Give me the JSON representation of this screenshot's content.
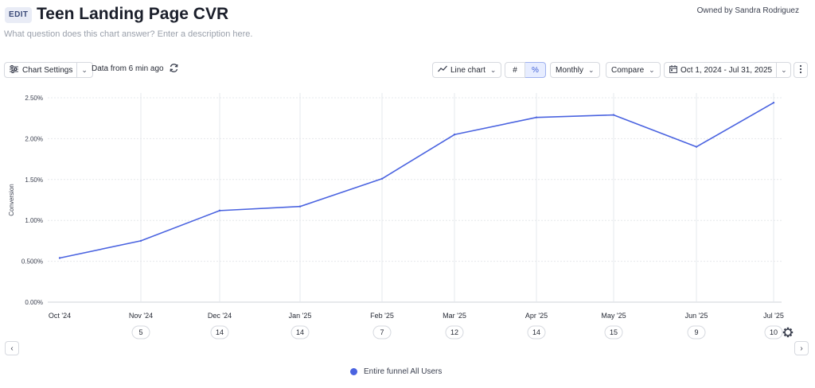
{
  "header": {
    "edit_label": "EDIT",
    "title": "Teen Landing Page CVR",
    "description_placeholder": "What question does this chart answer? Enter a description here.",
    "owner": "Owned by Sandra Rodriguez"
  },
  "toolbar": {
    "chart_settings_label": "Chart Settings",
    "data_freshness": "Data from 6 min ago",
    "chart_type_label": "Line chart",
    "count_toggle_label": "#",
    "percent_toggle_label": "%",
    "interval_label": "Monthly",
    "compare_label": "Compare",
    "date_range_label": "Oct 1, 2024 - Jul 31, 2025"
  },
  "icons": {
    "settings": "sliders-icon",
    "refresh": "refresh-icon",
    "line_chart": "line-chart-icon",
    "calendar": "calendar-icon",
    "more": "more-vertical-icon",
    "gear": "gear-icon",
    "prev": "chevron-left-icon",
    "next": "chevron-right-icon"
  },
  "colors": {
    "series": "#4a63e0",
    "accent": "#3f5fd6"
  },
  "chart_data": {
    "type": "line",
    "ylabel": "Conversion",
    "ylim": [
      0,
      2.5
    ],
    "yticks": [
      "0.00%",
      "0.500%",
      "1.00%",
      "1.50%",
      "2.00%",
      "2.50%"
    ],
    "categories": [
      "Oct '24",
      "Nov '24",
      "Dec '24",
      "Jan '25",
      "Feb '25",
      "Mar '25",
      "Apr '25",
      "May '25",
      "Jun '25",
      "Jul '25"
    ],
    "counts": [
      "",
      "5",
      "14",
      "14",
      "7",
      "12",
      "14",
      "15",
      "9",
      "10"
    ],
    "series": [
      {
        "name": "Entire funnel All Users",
        "values": [
          0.54,
          0.75,
          1.12,
          1.17,
          1.51,
          2.05,
          2.26,
          2.29,
          1.9,
          2.44
        ]
      }
    ],
    "grid": true,
    "legend_position": "bottom-center"
  }
}
